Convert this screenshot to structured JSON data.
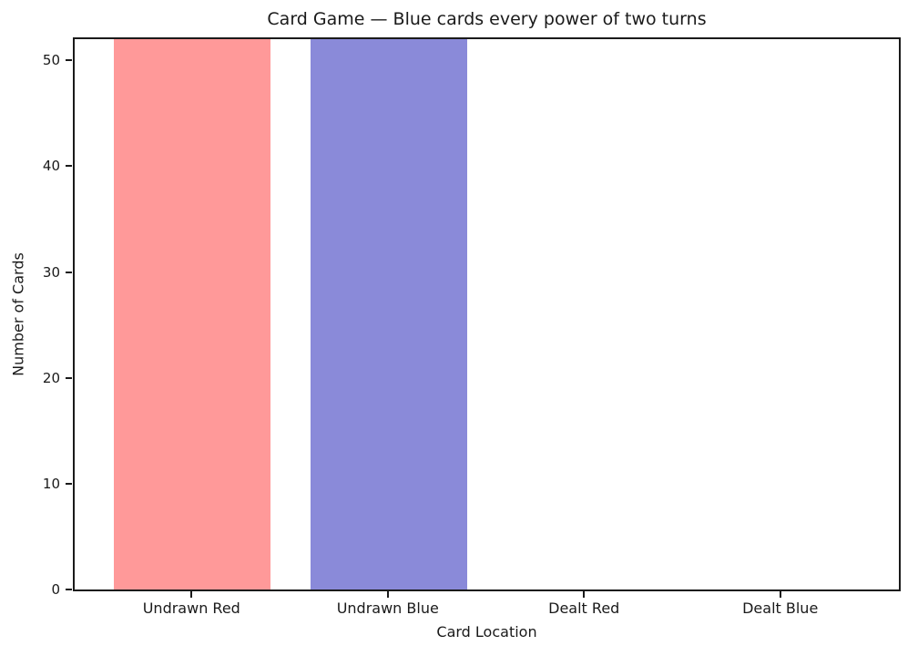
{
  "chart_data": {
    "type": "bar",
    "title": "Card Game — Blue cards every power of two turns",
    "xlabel": "Card Location",
    "ylabel": "Number of Cards",
    "categories": [
      "Undrawn Red",
      "Undrawn Blue",
      "Dealt Red",
      "Dealt Blue"
    ],
    "values": [
      52,
      52,
      0,
      0
    ],
    "bar_colors": [
      "#ff9999",
      "#8a8ad9",
      "#ff9999",
      "#8a8ad9"
    ],
    "bar_width": 0.8,
    "xlim": [
      -0.6,
      3.6
    ],
    "ylim": [
      0,
      52
    ],
    "yticks": [
      0,
      10,
      20,
      30,
      40,
      50
    ],
    "grid": false,
    "legend": null,
    "axis_color": "#1a1a1a",
    "background_color": "#ffffff"
  }
}
